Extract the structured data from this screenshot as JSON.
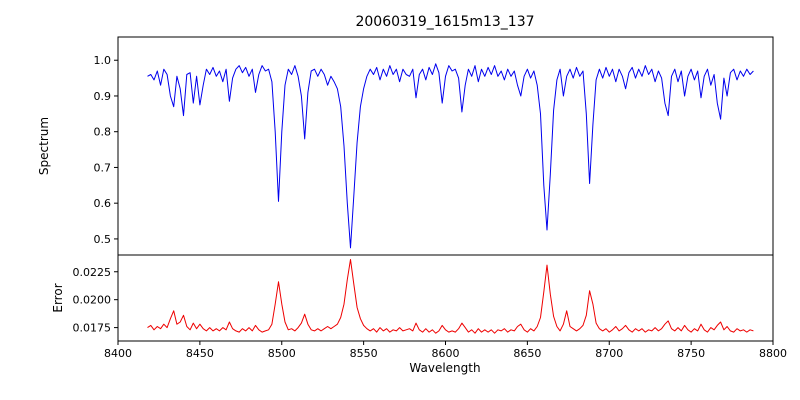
{
  "chart_data": {
    "type": "line",
    "title": "20060319_1615m13_137",
    "xlabel": "Wavelength",
    "xlim": [
      8400,
      8800
    ],
    "xticks": [
      8400,
      8450,
      8500,
      8550,
      8600,
      8650,
      8700,
      8750,
      8800
    ],
    "grid": false,
    "legend": "none",
    "panels": [
      {
        "name": "spectrum",
        "ylabel": "Spectrum",
        "ylim": [
          0.455,
          1.065
        ],
        "yticks": [
          1.0,
          0.9,
          0.8,
          0.7,
          0.6,
          0.5
        ],
        "ytick_labels": [
          "1.0",
          "0.9",
          "0.8",
          "0.7",
          "0.6",
          "0.5"
        ],
        "color": "#0000ee"
      },
      {
        "name": "error",
        "ylabel": "Error",
        "ylim": [
          0.0163,
          0.024
        ],
        "yticks": [
          0.0225,
          0.02,
          0.0175
        ],
        "ytick_labels": [
          "0.0225",
          "0.0200",
          "0.0175"
        ],
        "color": "#ee0000"
      }
    ],
    "x_start": 8418,
    "x_step": 2,
    "series": [
      {
        "name": "Spectrum",
        "panel": 0,
        "color": "#0000ee",
        "values": [
          0.955,
          0.96,
          0.945,
          0.97,
          0.93,
          0.975,
          0.96,
          0.9,
          0.87,
          0.955,
          0.92,
          0.845,
          0.96,
          0.965,
          0.88,
          0.955,
          0.875,
          0.93,
          0.975,
          0.96,
          0.98,
          0.955,
          0.97,
          0.94,
          0.975,
          0.885,
          0.95,
          0.975,
          0.985,
          0.965,
          0.98,
          0.955,
          0.975,
          0.91,
          0.96,
          0.985,
          0.97,
          0.975,
          0.94,
          0.8,
          0.605,
          0.8,
          0.93,
          0.975,
          0.96,
          0.985,
          0.955,
          0.9,
          0.78,
          0.91,
          0.97,
          0.975,
          0.955,
          0.975,
          0.96,
          0.93,
          0.955,
          0.94,
          0.92,
          0.87,
          0.76,
          0.6,
          0.475,
          0.62,
          0.77,
          0.87,
          0.92,
          0.955,
          0.975,
          0.96,
          0.98,
          0.945,
          0.975,
          0.955,
          0.985,
          0.96,
          0.975,
          0.94,
          0.975,
          0.96,
          0.955,
          0.975,
          0.895,
          0.96,
          0.975,
          0.945,
          0.98,
          0.96,
          0.99,
          0.965,
          0.88,
          0.955,
          0.985,
          0.97,
          0.975,
          0.95,
          0.855,
          0.93,
          0.975,
          0.955,
          0.985,
          0.94,
          0.975,
          0.955,
          0.98,
          0.96,
          0.985,
          0.955,
          0.97,
          0.945,
          0.975,
          0.955,
          0.97,
          0.93,
          0.9,
          0.955,
          0.975,
          0.95,
          0.97,
          0.93,
          0.85,
          0.65,
          0.525,
          0.68,
          0.86,
          0.945,
          0.975,
          0.9,
          0.955,
          0.975,
          0.95,
          0.98,
          0.955,
          0.97,
          0.85,
          0.655,
          0.82,
          0.945,
          0.975,
          0.95,
          0.98,
          0.955,
          0.975,
          0.94,
          0.975,
          0.955,
          0.92,
          0.965,
          0.98,
          0.95,
          0.975,
          0.955,
          0.985,
          0.96,
          0.975,
          0.94,
          0.97,
          0.95,
          0.88,
          0.845,
          0.955,
          0.975,
          0.94,
          0.97,
          0.9,
          0.955,
          0.975,
          0.945,
          0.97,
          0.895,
          0.955,
          0.975,
          0.93,
          0.96,
          0.88,
          0.835,
          0.95,
          0.9,
          0.965,
          0.975,
          0.945,
          0.97,
          0.955,
          0.975,
          0.96,
          0.97
        ]
      },
      {
        "name": "Error",
        "panel": 1,
        "color": "#ee0000",
        "values": [
          0.0175,
          0.0177,
          0.0173,
          0.0176,
          0.0174,
          0.0178,
          0.0175,
          0.0183,
          0.019,
          0.0178,
          0.018,
          0.0186,
          0.0176,
          0.0173,
          0.0179,
          0.0174,
          0.0178,
          0.0174,
          0.0172,
          0.0175,
          0.0172,
          0.0174,
          0.0172,
          0.0175,
          0.0173,
          0.018,
          0.0174,
          0.0172,
          0.0171,
          0.0174,
          0.0172,
          0.0175,
          0.0172,
          0.0177,
          0.0173,
          0.0171,
          0.0172,
          0.0173,
          0.0178,
          0.0196,
          0.0216,
          0.0196,
          0.018,
          0.0173,
          0.0174,
          0.0172,
          0.0175,
          0.0179,
          0.0187,
          0.0178,
          0.0173,
          0.0172,
          0.0174,
          0.0172,
          0.0174,
          0.0176,
          0.0174,
          0.0176,
          0.0178,
          0.0184,
          0.0196,
          0.0218,
          0.0236,
          0.0214,
          0.0193,
          0.0183,
          0.0177,
          0.0174,
          0.0172,
          0.0174,
          0.0171,
          0.0175,
          0.0172,
          0.0174,
          0.0171,
          0.0173,
          0.0172,
          0.0175,
          0.0172,
          0.0173,
          0.0174,
          0.0172,
          0.0179,
          0.0173,
          0.0171,
          0.0174,
          0.0171,
          0.0173,
          0.017,
          0.0172,
          0.0177,
          0.0173,
          0.0171,
          0.0172,
          0.0171,
          0.0174,
          0.0179,
          0.0175,
          0.0171,
          0.0173,
          0.017,
          0.0174,
          0.0171,
          0.0173,
          0.0171,
          0.0173,
          0.017,
          0.0173,
          0.0172,
          0.0174,
          0.0171,
          0.0173,
          0.0172,
          0.0176,
          0.0178,
          0.0173,
          0.0171,
          0.0174,
          0.0172,
          0.0176,
          0.0184,
          0.0207,
          0.0231,
          0.0205,
          0.0185,
          0.0176,
          0.0172,
          0.0178,
          0.019,
          0.0176,
          0.0174,
          0.0172,
          0.0174,
          0.0177,
          0.0186,
          0.0208,
          0.0196,
          0.0179,
          0.0174,
          0.0172,
          0.0174,
          0.0171,
          0.0173,
          0.0176,
          0.0172,
          0.0174,
          0.0177,
          0.0173,
          0.0171,
          0.0174,
          0.0172,
          0.0174,
          0.0171,
          0.0173,
          0.0172,
          0.0175,
          0.0172,
          0.0174,
          0.0178,
          0.0181,
          0.0174,
          0.0172,
          0.0175,
          0.0172,
          0.0177,
          0.0173,
          0.0171,
          0.0174,
          0.0172,
          0.0178,
          0.0173,
          0.0171,
          0.0175,
          0.0173,
          0.0177,
          0.018,
          0.0173,
          0.0176,
          0.0172,
          0.0171,
          0.0174,
          0.0172,
          0.0173,
          0.0171,
          0.0173,
          0.0172
        ]
      }
    ]
  }
}
